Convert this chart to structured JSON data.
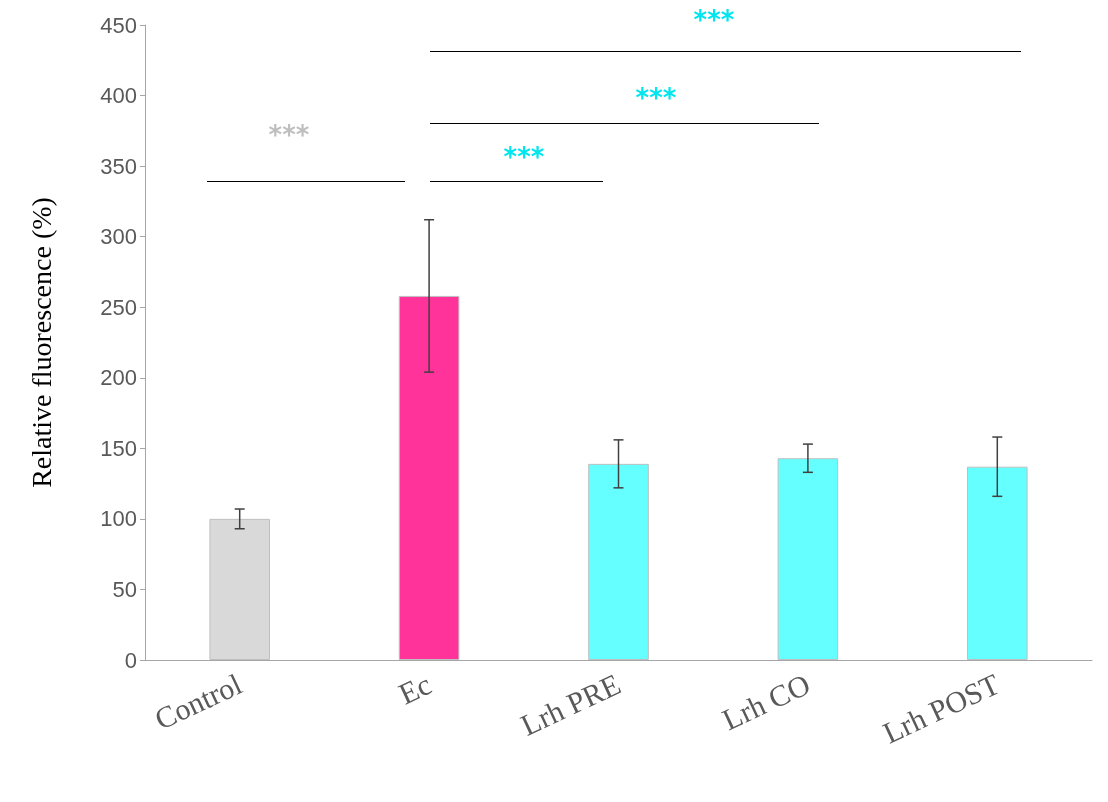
{
  "chart_data": {
    "type": "bar",
    "ylabel": "Relative fluorescence (%)",
    "categories": [
      "Control",
      "Ec",
      "Lrh PRE",
      "Lrh CO",
      "Lrh POST"
    ],
    "values": [
      100,
      258,
      139,
      143,
      137
    ],
    "errors": [
      7,
      54,
      17,
      10,
      21
    ],
    "colors": [
      "#d9d9d9",
      "#ff3399",
      "#66ffff",
      "#66ffff",
      "#66ffff"
    ],
    "ylim": [
      0,
      450
    ],
    "yticks": [
      0,
      50,
      100,
      150,
      200,
      250,
      300,
      350,
      400,
      450
    ],
    "grid": false,
    "annotations": [
      "***",
      "***",
      "***",
      "***"
    ]
  }
}
